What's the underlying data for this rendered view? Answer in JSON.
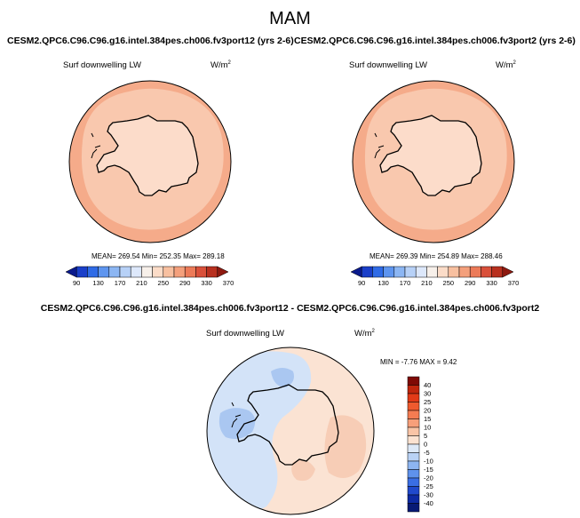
{
  "season": "MAM",
  "variable_label": "Surf downwelling LW",
  "units": "W/m",
  "units_sup": "2",
  "panels": [
    {
      "case": "CESM2.QPC6.C96.C96.g16.intel.384pes.ch006.fv3port12 (yrs 2-6)",
      "stats": "MEAN= 269.54   Min= 252.35   Max= 289.18"
    },
    {
      "case": "CESM2.QPC6.C96.C96.g16.intel.384pes.ch006.fv3port2 (yrs 2-6)",
      "stats": "MEAN= 269.39   Min= 254.89   Max= 288.46"
    }
  ],
  "diff": {
    "title": "CESM2.QPC6.C96.C96.g16.intel.384pes.ch006.fv3port12 - CESM2.QPC6.C96.C96.g16.intel.384pes.ch006.fv3port2",
    "stats": "MIN =  -7.76 MAX =   9.42"
  },
  "colorbar_abs": {
    "labels": [
      "90",
      "130",
      "170",
      "210",
      "250",
      "290",
      "330",
      "370"
    ],
    "colors": [
      "#0a1a8c",
      "#1a3fc9",
      "#2f6be6",
      "#5e95ef",
      "#8cb6f3",
      "#b7d1f7",
      "#dde8fb",
      "#f7f0ea",
      "#fbdcc8",
      "#f8c0a0",
      "#f4a07c",
      "#ec7a58",
      "#d9503a",
      "#b8301f",
      "#8e1a10"
    ]
  },
  "colorbar_diff": {
    "labels": [
      "40",
      "30",
      "25",
      "20",
      "15",
      "10",
      "5",
      "0",
      "-5",
      "-10",
      "-15",
      "-20",
      "-25",
      "-30",
      "-40"
    ],
    "colors": [
      "#7f0a05",
      "#c0260d",
      "#e23a17",
      "#ef5a2e",
      "#f47c52",
      "#f79f7a",
      "#f9c4a6",
      "#fbe2d1",
      "#dde9f8",
      "#b9d2f5",
      "#8db5f1",
      "#5f92ec",
      "#3a6ee4",
      "#2049cc",
      "#0e2aa3",
      "#081a75"
    ]
  },
  "colors": {
    "ocean_abs": "#f5ab8a",
    "inner_abs": "#f9c8ae",
    "land_abs": "#fcdcca",
    "diff_pos": "#fbe3d3",
    "diff_pos2": "#f7cdb6",
    "diff_neg": "#d3e3f8",
    "diff_neg2": "#aac7f1"
  }
}
